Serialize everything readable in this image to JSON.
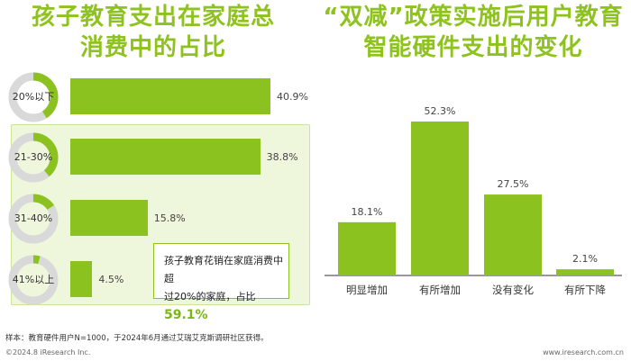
{
  "left_title": [
    "孩子教育支出在家庭总",
    "消费中的占比"
  ],
  "right_title": [
    "“双减”政策实施后用户教育",
    "智能硬件支出的变化"
  ],
  "callout": {
    "line1": "孩子教育花销在家庭消费中超",
    "line2_prefix": "过20%的家庭，占比",
    "highlight": "59.1%"
  },
  "footer": {
    "note": "样本：教育硬件用户N=1000，于2024年6月通过艾瑞艾克斯调研社区获得。",
    "copyright": "©2024.8 iResearch Inc.",
    "url": "www.iresearch.com.cn"
  },
  "colors": {
    "accent": "#8cc21f",
    "donut_track": "#d9d9d9",
    "highlight_bg": "#eef6db"
  },
  "chart_data": [
    {
      "type": "bar",
      "orientation": "horizontal",
      "categories": [
        "20%以下",
        "21-30%",
        "31-40%",
        "41%以上"
      ],
      "values": [
        40.9,
        38.8,
        15.8,
        4.5
      ],
      "value_labels": [
        "40.9%",
        "38.8%",
        "15.8%",
        "4.5%"
      ],
      "category_marker": "donut",
      "highlighted_categories": [
        "21-30%",
        "31-40%",
        "41%以上"
      ],
      "xlim": [
        0,
        40.9
      ]
    },
    {
      "type": "bar",
      "orientation": "vertical",
      "categories": [
        "明显增加",
        "有所增加",
        "没有变化",
        "有所下降"
      ],
      "values": [
        18.1,
        52.3,
        27.5,
        2.1
      ],
      "value_labels": [
        "18.1%",
        "52.3%",
        "27.5%",
        "2.1%"
      ],
      "ylim": [
        0,
        52.3
      ]
    }
  ]
}
